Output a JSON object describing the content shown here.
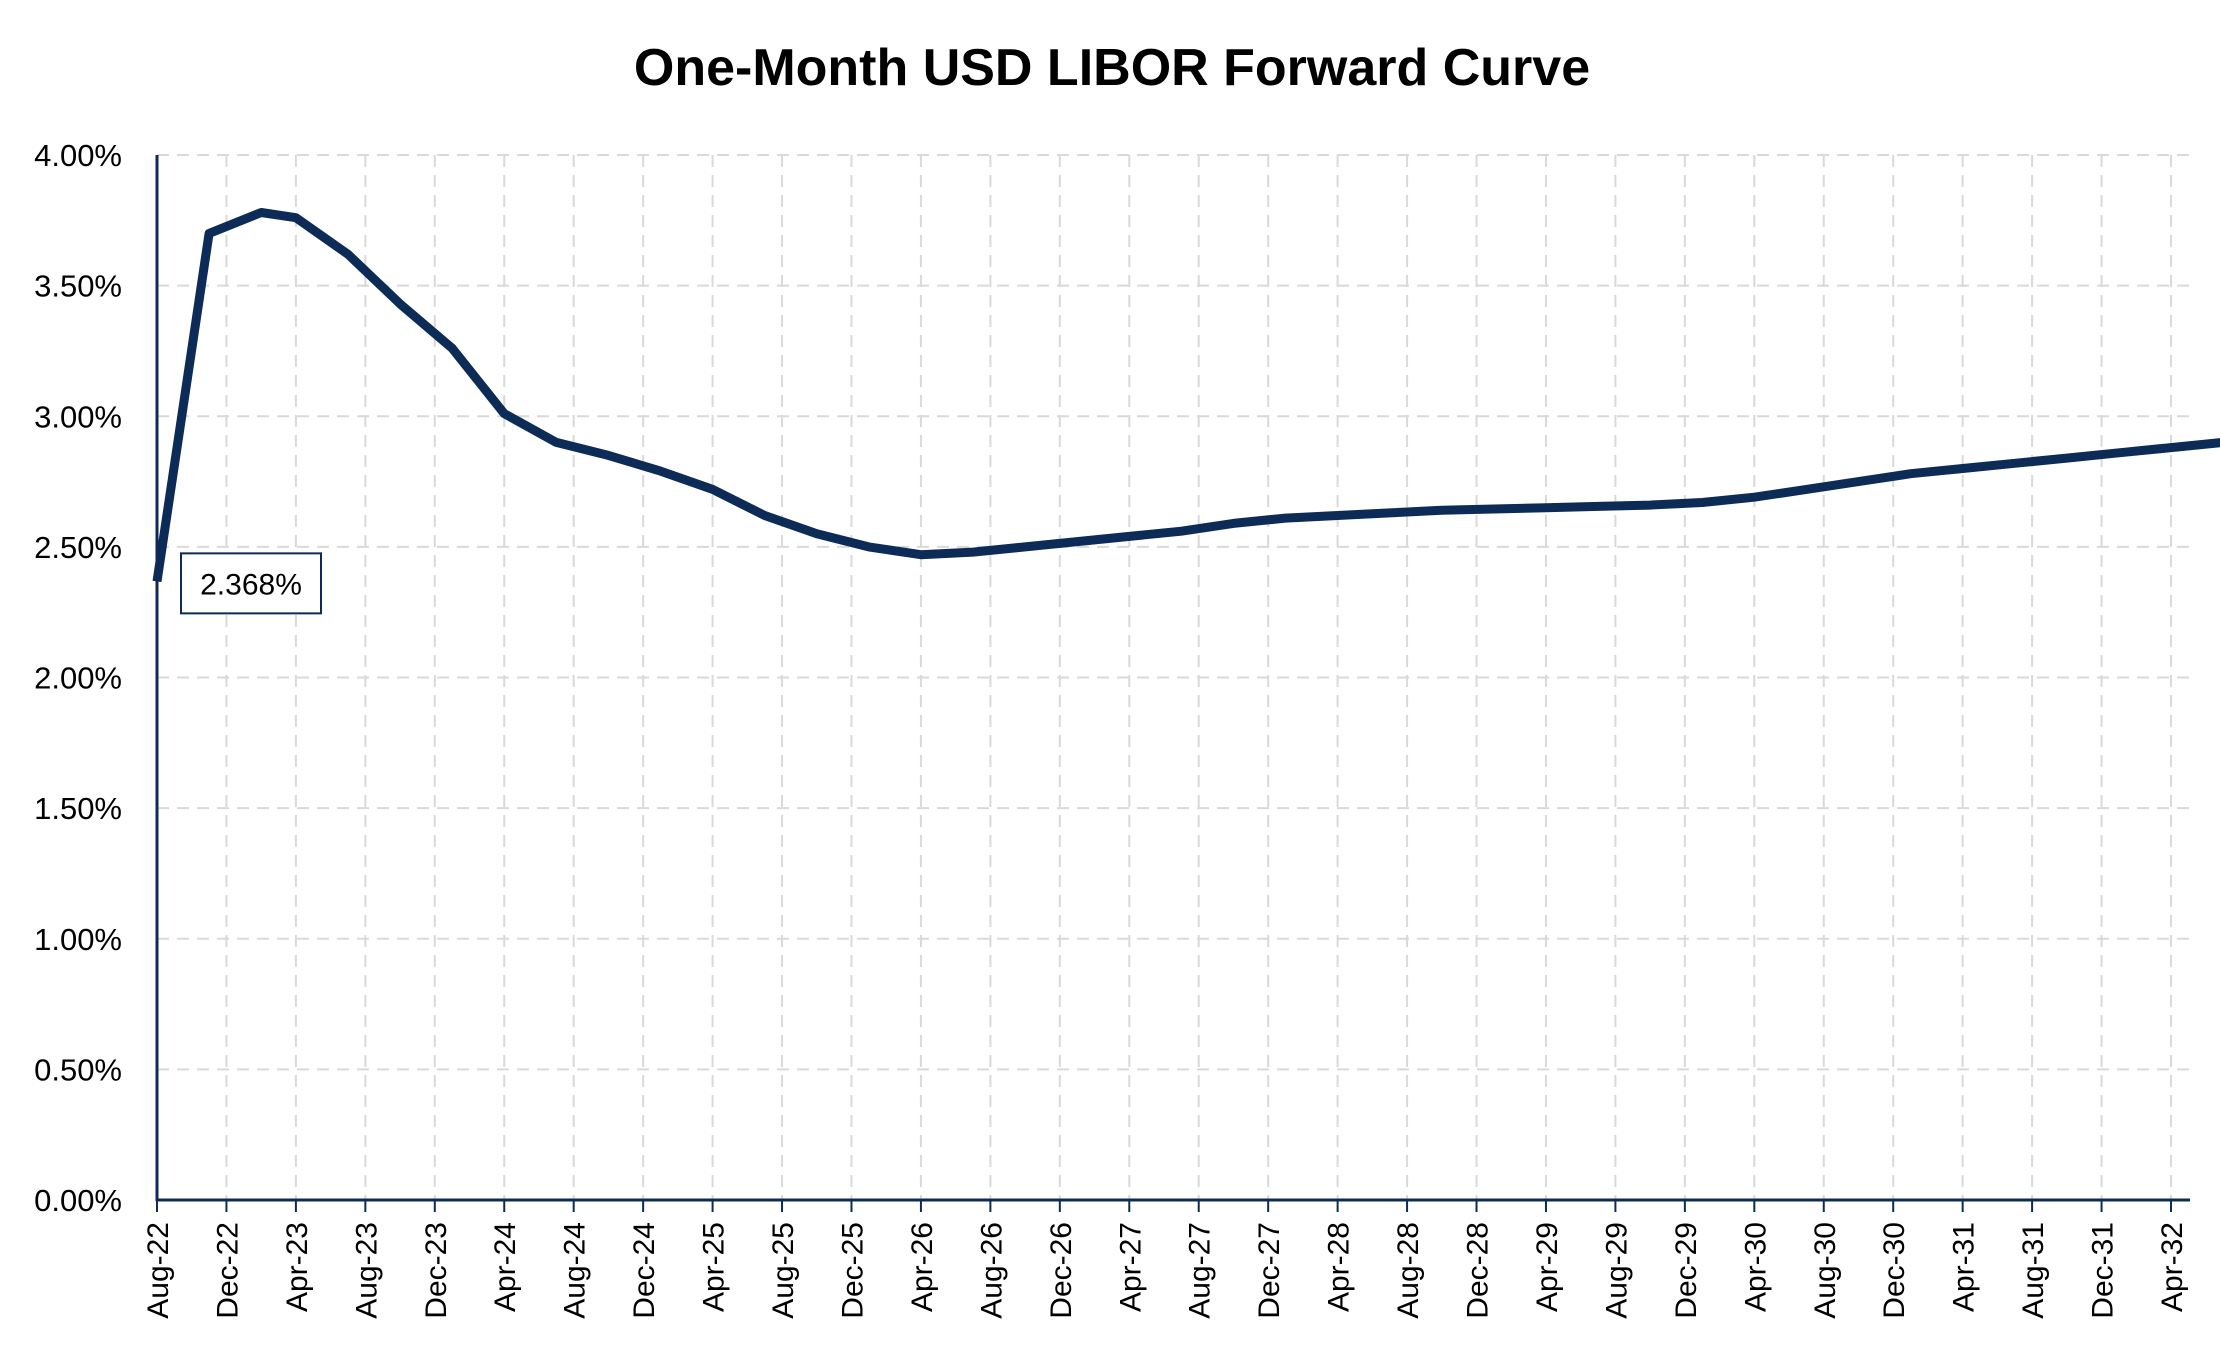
{
  "chart_data": {
    "type": "line",
    "title": "One-Month USD LIBOR Forward Curve",
    "xlabel": "",
    "ylabel": "",
    "ylim": [
      0,
      4
    ],
    "yticks": [
      "0.00%",
      "0.50%",
      "1.00%",
      "1.50%",
      "2.00%",
      "2.50%",
      "3.00%",
      "3.50%",
      "4.00%"
    ],
    "categories": [
      "Aug-22",
      "Dec-22",
      "Apr-23",
      "Aug-23",
      "Dec-23",
      "Apr-24",
      "Aug-24",
      "Dec-24",
      "Apr-25",
      "Aug-25",
      "Dec-25",
      "Apr-26",
      "Aug-26",
      "Dec-26",
      "Apr-27",
      "Aug-27",
      "Dec-27",
      "Apr-28",
      "Aug-28",
      "Dec-28",
      "Apr-29",
      "Aug-29",
      "Dec-29",
      "Apr-30",
      "Aug-30",
      "Dec-30",
      "Apr-31",
      "Aug-31",
      "Dec-31",
      "Apr-32"
    ],
    "grid": true,
    "legend": "none",
    "series": [
      {
        "color": "#0d2b57",
        "points": [
          [
            "Aug-22",
            2.368
          ],
          [
            "Nov-22",
            3.7
          ],
          [
            "Feb-23",
            3.78
          ],
          [
            "Apr-23",
            3.76
          ],
          [
            "Jul-23",
            3.62
          ],
          [
            "Oct-23",
            3.43
          ],
          [
            "Jan-24",
            3.26
          ],
          [
            "Apr-24",
            3.01
          ],
          [
            "Jul-24",
            2.9
          ],
          [
            "Oct-24",
            2.85
          ],
          [
            "Jan-25",
            2.79
          ],
          [
            "Apr-25",
            2.72
          ],
          [
            "Jul-25",
            2.62
          ],
          [
            "Oct-25",
            2.55
          ],
          [
            "Jan-26",
            2.5
          ],
          [
            "Apr-26",
            2.47
          ],
          [
            "Jul-26",
            2.48
          ],
          [
            "Oct-26",
            2.5
          ],
          [
            "Jan-27",
            2.52
          ],
          [
            "Apr-27",
            2.54
          ],
          [
            "Jul-27",
            2.56
          ],
          [
            "Oct-27",
            2.59
          ],
          [
            "Jan-28",
            2.61
          ],
          [
            "Apr-28",
            2.62
          ],
          [
            "Jul-28",
            2.63
          ],
          [
            "Oct-28",
            2.64
          ],
          [
            "Jan-29",
            2.645
          ],
          [
            "Apr-29",
            2.65
          ],
          [
            "Jul-29",
            2.655
          ],
          [
            "Oct-29",
            2.66
          ],
          [
            "Jan-30",
            2.67
          ],
          [
            "Apr-30",
            2.69
          ],
          [
            "Jul-30",
            2.72
          ],
          [
            "Oct-30",
            2.75
          ],
          [
            "Jan-31",
            2.78
          ],
          [
            "Apr-31",
            2.8
          ],
          [
            "Jul-31",
            2.82
          ],
          [
            "Oct-31",
            2.84
          ],
          [
            "Jan-32",
            2.86
          ],
          [
            "Apr-32",
            2.88
          ],
          [
            "Jul-32",
            2.9
          ]
        ]
      }
    ],
    "annotations": [
      {
        "text": "2.368%",
        "x": "Aug-22",
        "y": 2.368
      }
    ]
  }
}
